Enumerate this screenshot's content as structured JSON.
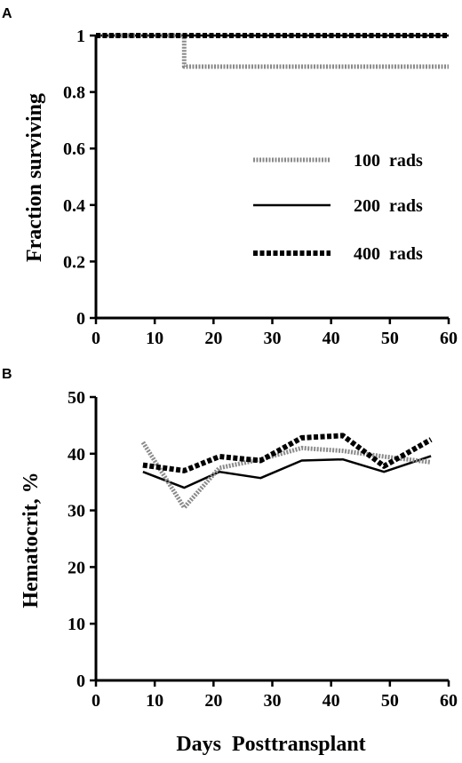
{
  "chart_data": [
    {
      "panel": "A",
      "type": "line",
      "step": true,
      "xlabel": "",
      "ylabel": "Fraction surviving",
      "xlim": [
        0,
        60
      ],
      "ylim": [
        0,
        1
      ],
      "xticks": [
        "0",
        "10",
        "20",
        "30",
        "40",
        "50",
        "60"
      ],
      "yticks": [
        "0",
        "0.2",
        "0.4",
        "0.6",
        "0.8",
        "1"
      ],
      "legend": {
        "position": "center-right"
      },
      "series": [
        {
          "name": "100 rads",
          "style": "dotted",
          "x": [
            0,
            15,
            15,
            60
          ],
          "y": [
            1,
            1,
            0.89,
            0.89
          ]
        },
        {
          "name": "200 rads",
          "style": "solid",
          "x": [
            0,
            60
          ],
          "y": [
            1,
            1
          ]
        },
        {
          "name": "400 rads",
          "style": "dashed",
          "x": [
            0,
            60
          ],
          "y": [
            1,
            1
          ]
        }
      ]
    },
    {
      "panel": "B",
      "type": "line",
      "xlabel": "Days  Posttransplant",
      "ylabel": "Hematocrit,  %",
      "xlim": [
        0,
        60
      ],
      "ylim": [
        0,
        50
      ],
      "xticks": [
        "0",
        "10",
        "20",
        "30",
        "40",
        "50",
        "60"
      ],
      "yticks": [
        "0",
        "10",
        "20",
        "30",
        "40",
        "50"
      ],
      "series": [
        {
          "name": "100 rads",
          "style": "dotted",
          "x": [
            8,
            15,
            21,
            28,
            35,
            42,
            49,
            57
          ],
          "y": [
            42.0,
            30.5,
            37.5,
            39.0,
            41.0,
            40.5,
            39.5,
            38.5
          ]
        },
        {
          "name": "200 rads",
          "style": "solid",
          "x": [
            8,
            15,
            21,
            28,
            35,
            42,
            49,
            57
          ],
          "y": [
            36.8,
            34.0,
            36.8,
            35.7,
            38.8,
            39.0,
            36.8,
            39.6
          ]
        },
        {
          "name": "400 rads",
          "style": "dashed",
          "x": [
            8,
            15,
            21,
            28,
            35,
            42,
            49,
            57
          ],
          "y": [
            38.0,
            37.0,
            39.5,
            38.8,
            42.8,
            43.2,
            37.8,
            42.5
          ]
        }
      ]
    }
  ]
}
